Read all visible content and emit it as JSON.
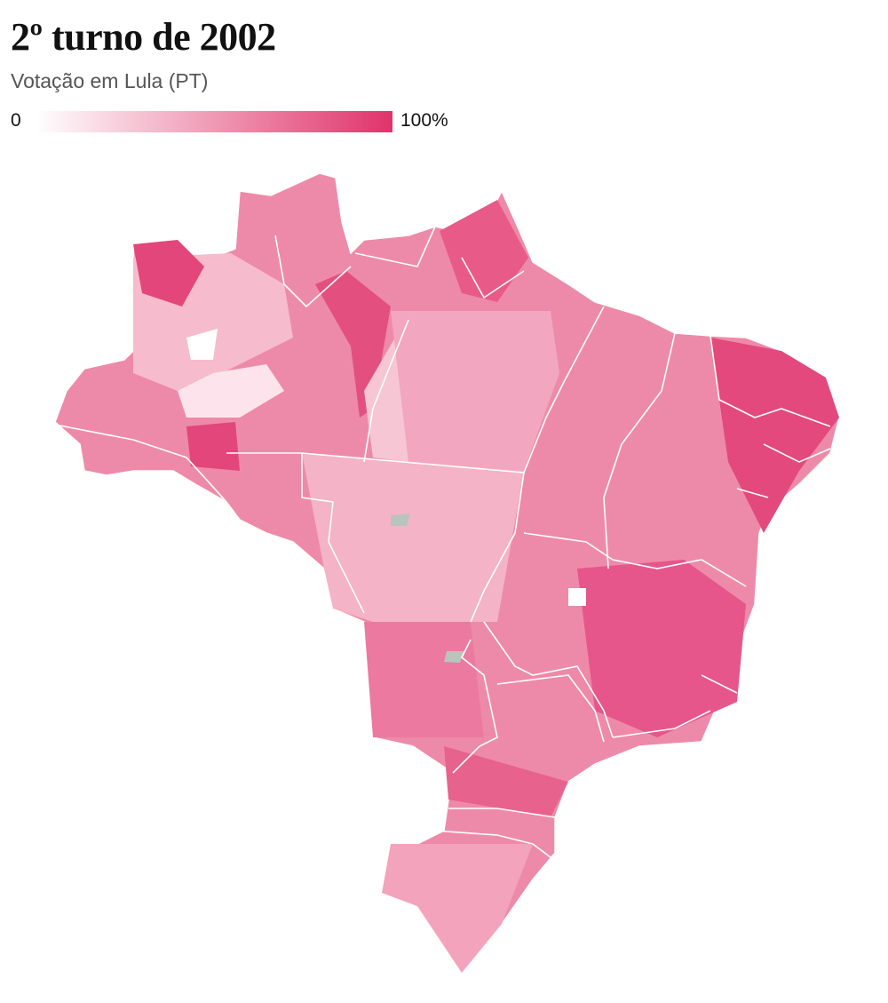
{
  "title": "2º turno de 2002",
  "subtitle": "Votação em Lula (PT)",
  "legend": {
    "min_label": "0",
    "max_label": "100%",
    "color_low": "#ffffff",
    "color_high": "#e0336b"
  }
}
